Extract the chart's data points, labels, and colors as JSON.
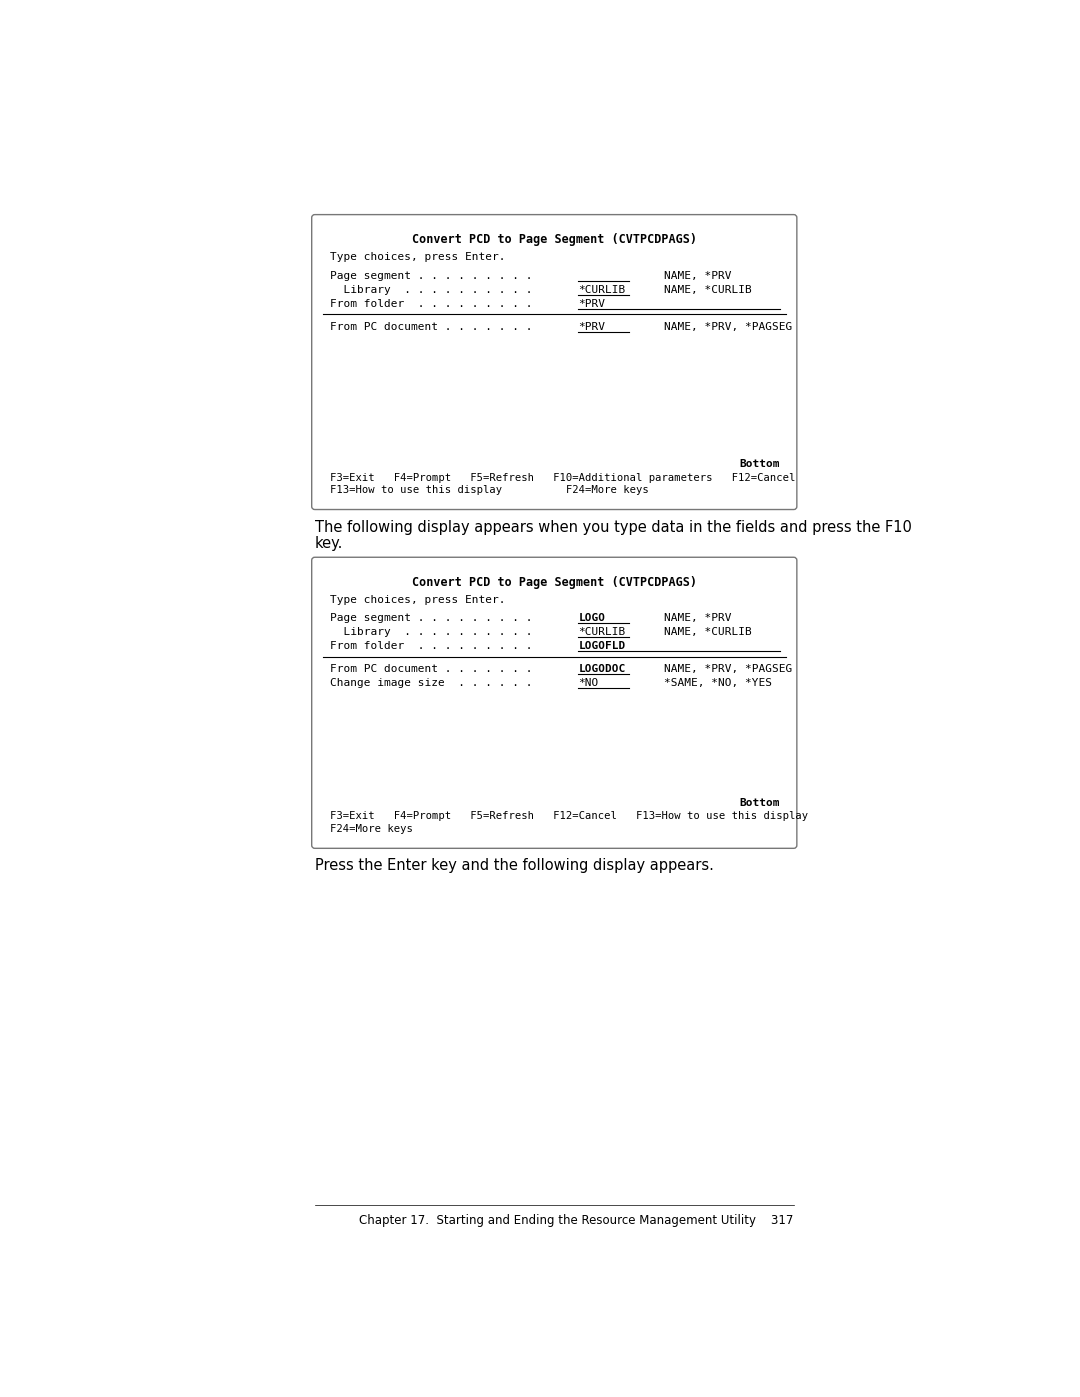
{
  "bg_color": "#ffffff",
  "panel1": {
    "title": "Convert PCD to Page Segment (CVTPCDPAGS)",
    "subtitle": "Type choices, press Enter.",
    "rows1": [
      {
        "label": "Page segment . . . . . . . . .",
        "value": "",
        "hint": "NAME, *PRV",
        "bold_value": false,
        "long_ul": false
      },
      {
        "label": "  Library  . . . . . . . . . .",
        "value": "*CURLIB",
        "hint": "NAME, *CURLIB",
        "bold_value": false,
        "long_ul": false
      },
      {
        "label": "From folder  . . . . . . . . .",
        "value": "*PRV",
        "hint": "",
        "bold_value": false,
        "long_ul": true
      }
    ],
    "rows2": [
      {
        "label": "From PC document . . . . . . .",
        "value": "*PRV",
        "hint": "NAME, *PRV, *PAGSEG",
        "bold_value": false,
        "long_ul": false
      }
    ],
    "bottom_label": "Bottom",
    "fkeys1": "F3=Exit   F4=Prompt   F5=Refresh   F10=Additional parameters   F12=Cancel",
    "fkeys2": "F13=How to use this display          F24=More keys"
  },
  "between_text1": "The following display appears when you type data in the fields and press the F10",
  "between_text2": "key.",
  "panel2": {
    "title": "Convert PCD to Page Segment (CVTPCDPAGS)",
    "subtitle": "Type choices, press Enter.",
    "rows1": [
      {
        "label": "Page segment . . . . . . . . .",
        "value": "LOGO",
        "hint": "NAME, *PRV",
        "bold_value": true,
        "long_ul": false
      },
      {
        "label": "  Library  . . . . . . . . . .",
        "value": "*CURLIB",
        "hint": "NAME, *CURLIB",
        "bold_value": false,
        "long_ul": false
      },
      {
        "label": "From folder  . . . . . . . . .",
        "value": "LOGOFLD",
        "hint": "",
        "bold_value": true,
        "long_ul": true
      }
    ],
    "rows2": [
      {
        "label": "From PC document . . . . . . .",
        "value": "LOGODOC",
        "hint": "NAME, *PRV, *PAGSEG",
        "bold_value": true,
        "long_ul": false
      },
      {
        "label": "Change image size  . . . . . .",
        "value": "*NO",
        "hint": "*SAME, *NO, *YES",
        "bold_value": false,
        "long_ul": false
      }
    ],
    "bottom_label": "Bottom",
    "fkeys1": "F3=Exit   F4=Prompt   F5=Refresh   F12=Cancel   F13=How to use this display",
    "fkeys2": "F24=More keys"
  },
  "footer_text": "Press the Enter key and the following display appears.",
  "page_footer": "Chapter 17.  Starting and Ending the Resource Management Utility    317"
}
